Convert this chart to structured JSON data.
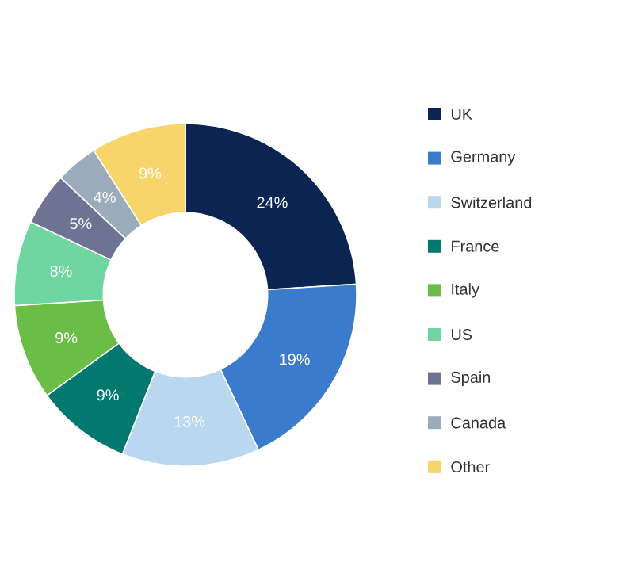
{
  "chart_data": {
    "type": "donut",
    "categories": [
      "UK",
      "Germany",
      "Switzerland",
      "France",
      "Italy",
      "US",
      "Spain",
      "Canada",
      "Other"
    ],
    "values": [
      24,
      19,
      13,
      9,
      9,
      8,
      5,
      4,
      9
    ],
    "value_labels": [
      "24%",
      "19%",
      "13%",
      "9%",
      "9%",
      "8%",
      "5%",
      "4%",
      "9%"
    ],
    "colors": [
      "#0b2452",
      "#3b7bcb",
      "#b9d7ee",
      "#03786f",
      "#6abd45",
      "#70d6a1",
      "#6d7393",
      "#9aacbc",
      "#f7d56b"
    ],
    "legend": "right"
  }
}
